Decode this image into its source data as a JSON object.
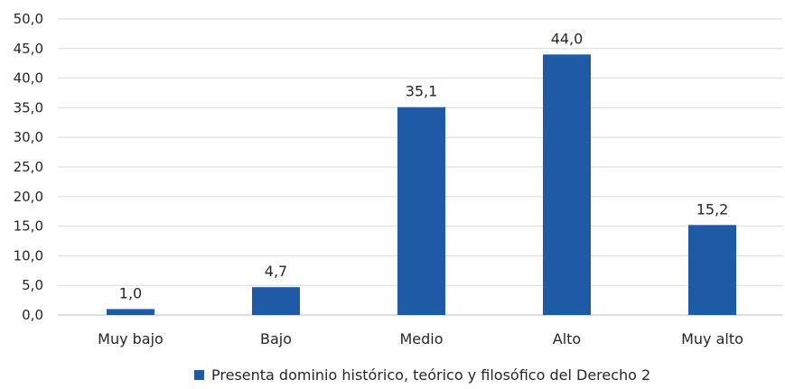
{
  "chart_data": {
    "type": "bar",
    "categories": [
      "Muy bajo",
      "Bajo",
      "Medio",
      "Alto",
      "Muy alto"
    ],
    "series": [
      {
        "name": "Presenta dominio histórico, teórico y filosófico del Derecho 2",
        "values": [
          1.0,
          4.7,
          35.1,
          44.0,
          15.2
        ],
        "value_labels": [
          "1,0",
          "4,7",
          "35,1",
          "44,0",
          "15,2"
        ],
        "color": "#1f5aa6"
      }
    ],
    "title": "",
    "xlabel": "",
    "ylabel": "",
    "ylim": [
      0,
      50
    ],
    "yticks": [
      0,
      5,
      10,
      15,
      20,
      25,
      30,
      35,
      40,
      45,
      50
    ],
    "ytick_labels": [
      "0,0",
      "5,0",
      "10,0",
      "15,0",
      "20,0",
      "25,0",
      "30,0",
      "35,0",
      "40,0",
      "45,0",
      "50,0"
    ],
    "grid": true,
    "grid_color": "#d9d9d9",
    "legend_position": "bottom"
  }
}
